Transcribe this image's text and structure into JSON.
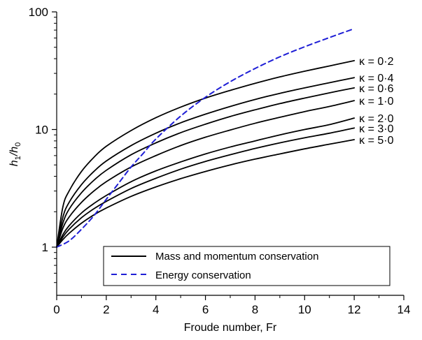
{
  "chart_data": {
    "type": "line",
    "xlabel": "Froude number, Fr",
    "ylabel": {
      "main": "h",
      "sub1": "1",
      "slash": "/h",
      "sub2": "0"
    },
    "xlim": [
      0,
      14
    ],
    "ylim": [
      0.4,
      100
    ],
    "yscale": "log",
    "x_ticks": [
      0,
      2,
      4,
      6,
      8,
      10,
      12,
      14
    ],
    "x_tick_labels": [
      "0",
      "2",
      "4",
      "6",
      "8",
      "10",
      "12",
      "14"
    ],
    "y_ticks": [
      1,
      10,
      100
    ],
    "y_tick_labels": [
      "1",
      "10",
      "100"
    ],
    "x_minor_step": 1,
    "grid": false,
    "legend_position": "bottom-right",
    "colors": {
      "mass_momentum": "#000000",
      "energy": "#1f1fd6",
      "axes": "#000000"
    },
    "series": [
      {
        "name": "Mass and momentum conservation",
        "label": "κ = 0·2",
        "style": "solid",
        "x": [
          0,
          0.25,
          0.5,
          1,
          1.5,
          2,
          3,
          4,
          5,
          6,
          7,
          8,
          9,
          10,
          11,
          12
        ],
        "y": [
          1.0,
          2.2,
          3.0,
          4.4,
          5.8,
          7.2,
          9.8,
          12.6,
          15.5,
          18.5,
          21.5,
          24.7,
          28.0,
          31.3,
          34.7,
          38.5
        ]
      },
      {
        "label": "κ = 0·4",
        "style": "solid",
        "x": [
          0,
          0.25,
          0.5,
          1,
          1.5,
          2,
          3,
          4,
          5,
          6,
          7,
          8,
          9,
          10,
          11,
          12
        ],
        "y": [
          1.0,
          1.8,
          2.4,
          3.4,
          4.4,
          5.4,
          7.3,
          9.3,
          11.4,
          13.5,
          15.7,
          18.0,
          20.3,
          22.6,
          25.0,
          27.6
        ]
      },
      {
        "label": "κ = 0·6",
        "style": "solid",
        "x": [
          0,
          0.25,
          0.5,
          1,
          1.5,
          2,
          3,
          4,
          5,
          6,
          7,
          8,
          9,
          10,
          11,
          12
        ],
        "y": [
          1.0,
          1.6,
          2.1,
          2.9,
          3.7,
          4.5,
          6.1,
          7.7,
          9.4,
          11.1,
          12.9,
          14.7,
          16.6,
          18.5,
          20.5,
          22.6
        ]
      },
      {
        "label": "κ = 1·0",
        "style": "solid",
        "x": [
          0,
          0.25,
          0.5,
          1,
          1.5,
          2,
          3,
          4,
          5,
          6,
          7,
          8,
          9,
          10,
          11,
          12
        ],
        "y": [
          1.0,
          1.45,
          1.8,
          2.4,
          3.0,
          3.6,
          4.8,
          6.0,
          7.3,
          8.6,
          9.9,
          11.3,
          12.7,
          14.2,
          15.7,
          17.6
        ]
      },
      {
        "label": "κ = 2·0",
        "style": "solid",
        "x": [
          0,
          0.25,
          0.5,
          1,
          1.5,
          2,
          3,
          4,
          5,
          6,
          7,
          8,
          9,
          10,
          11,
          12
        ],
        "y": [
          1.0,
          1.28,
          1.52,
          1.95,
          2.35,
          2.75,
          3.6,
          4.45,
          5.3,
          6.2,
          7.1,
          8.0,
          9.0,
          10.0,
          11.0,
          12.5
        ]
      },
      {
        "label": "κ = 3·0",
        "style": "solid",
        "x": [
          0,
          0.25,
          0.5,
          1,
          1.5,
          2,
          3,
          4,
          5,
          6,
          7,
          8,
          9,
          10,
          11,
          12
        ],
        "y": [
          1.0,
          1.22,
          1.42,
          1.78,
          2.12,
          2.45,
          3.15,
          3.85,
          4.6,
          5.35,
          6.1,
          6.9,
          7.7,
          8.5,
          9.3,
          10.3
        ]
      },
      {
        "label": "κ = 5·0",
        "style": "solid",
        "x": [
          0,
          0.25,
          0.5,
          1,
          1.5,
          2,
          3,
          4,
          5,
          6,
          7,
          8,
          9,
          10,
          11,
          12
        ],
        "y": [
          1.0,
          1.16,
          1.31,
          1.6,
          1.88,
          2.15,
          2.7,
          3.25,
          3.82,
          4.4,
          5.0,
          5.6,
          6.2,
          6.85,
          7.5,
          8.2
        ]
      },
      {
        "name": "Energy conservation",
        "style": "dashed",
        "x": [
          0,
          0.5,
          1,
          1.5,
          2,
          2.5,
          3,
          3.5,
          4,
          5,
          6,
          7,
          8,
          9,
          10,
          11,
          12
        ],
        "y": [
          1.0,
          1.13,
          1.42,
          1.85,
          2.55,
          3.5,
          4.8,
          6.3,
          8.3,
          13.0,
          18.8,
          25.5,
          33.0,
          41.5,
          50.5,
          60.5,
          72.0
        ]
      }
    ],
    "legend": [
      {
        "label": "Mass and momentum conservation",
        "style": "solid"
      },
      {
        "label": "Energy conservation",
        "style": "dashed"
      }
    ]
  }
}
